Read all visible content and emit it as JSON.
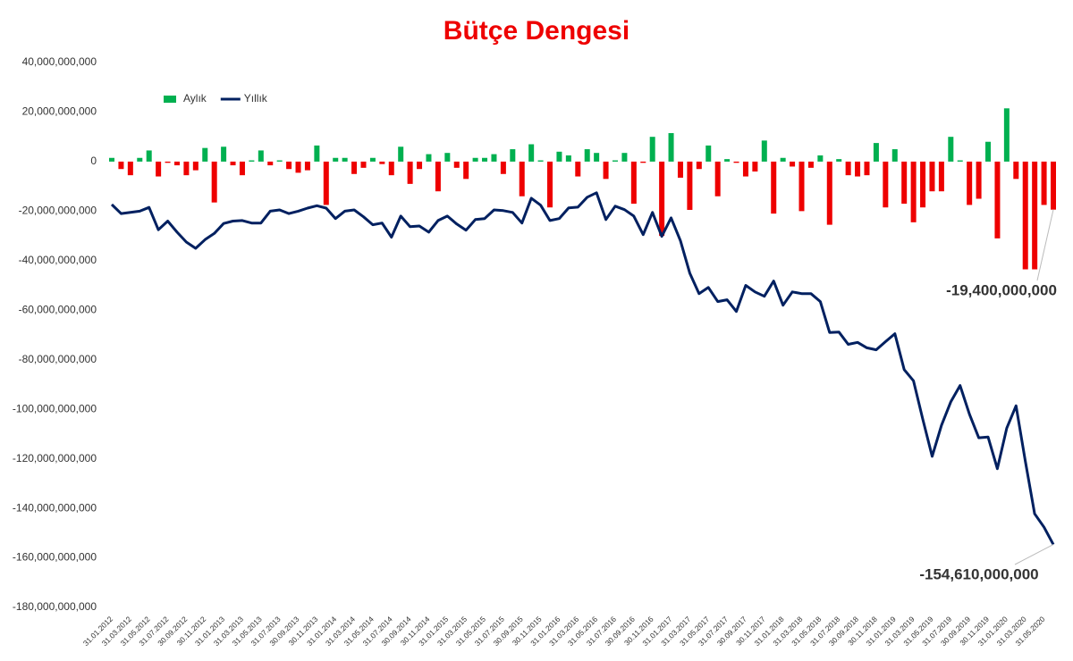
{
  "chart_data": {
    "type": "bar",
    "title": "Bütçe Dengesi",
    "categories": [
      "31.01.2012",
      null,
      "31.03.2012",
      null,
      "31.05.2012",
      null,
      "31.07.2012",
      null,
      "30.09.2012",
      null,
      "30.11.2012",
      null,
      "31.01.2013",
      null,
      "31.03.2013",
      null,
      "31.05.2013",
      null,
      "31.07.2013",
      null,
      "30.09.2013",
      null,
      "30.11.2013",
      null,
      "31.01.2014",
      null,
      "31.03.2014",
      null,
      "31.05.2014",
      null,
      "31.07.2014",
      null,
      "30.09.2014",
      null,
      "30.11.2014",
      null,
      "31.01.2015",
      null,
      "31.03.2015",
      null,
      "31.05.2015",
      null,
      "31.07.2015",
      null,
      "30.09.2015",
      null,
      "30.11.2015",
      null,
      "31.01.2016",
      null,
      "31.03.2016",
      null,
      "31.05.2016",
      null,
      "31.07.2016",
      null,
      "30.09.2016",
      null,
      "30.11.2016",
      null,
      "31.01.2017",
      null,
      "31.03.2017",
      null,
      "31.05.2017",
      null,
      "31.07.2017",
      null,
      "30.09.2017",
      null,
      "30.11.2017",
      null,
      "31.01.2018",
      null,
      "31.03.2018",
      null,
      "31.05.2018",
      null,
      "31.07.2018",
      null,
      "30.09.2018",
      null,
      "30.11.2018",
      null,
      "31.01.2019",
      null,
      "31.03.2019",
      null,
      "31.05.2019",
      null,
      "31.07.2019",
      null,
      "30.09.2019",
      null,
      "30.11.2019",
      null,
      "31.01.2020",
      null,
      "31.03.2020",
      null,
      "31.05.2020",
      null
    ],
    "series": [
      {
        "name": "Aylık",
        "type": "bar",
        "color": "#00b050",
        "negative_color": "#ee0000",
        "values": [
          1500000000,
          -3000000000,
          -5500000000,
          1500000000,
          4500000000,
          -6000000000,
          -500000000,
          -1500000000,
          -5500000000,
          -3500000000,
          5500000000,
          -16500000000,
          6000000000,
          -1500000000,
          -5500000000,
          500000000,
          4500000000,
          -1500000000,
          500000000,
          -3000000000,
          -4500000000,
          -3500000000,
          6500000000,
          -17500000000,
          1500000000,
          1500000000,
          -5000000000,
          -2500000000,
          1500000000,
          -1000000000,
          -5500000000,
          6000000000,
          -9000000000,
          -3000000000,
          3000000000,
          -12000000000,
          3500000000,
          -2500000000,
          -7000000000,
          1500000000,
          1500000000,
          3000000000,
          -5000000000,
          5000000000,
          -14000000000,
          7000000000,
          500000000,
          -18500000000,
          4000000000,
          2500000000,
          -6000000000,
          5000000000,
          3500000000,
          -7000000000,
          500000000,
          3500000000,
          -17000000000,
          -500000000,
          10000000000,
          -30000000000,
          11500000000,
          -6500000000,
          -19500000000,
          -3000000000,
          6500000000,
          -14000000000,
          1000000000,
          -500000000,
          -6000000000,
          -4000000000,
          8500000000,
          -21000000000,
          1500000000,
          -2000000000,
          -20000000000,
          -2500000000,
          2500000000,
          -25500000000,
          1000000000,
          -5500000000,
          -6000000000,
          -5500000000,
          7500000000,
          -18500000000,
          5000000000,
          -17000000000,
          -24500000000,
          -18500000000,
          -12000000000,
          -12000000000,
          10000000000,
          500000000,
          -17500000000,
          -15000000000,
          8000000000,
          -31000000000,
          21500000000,
          -7000000000,
          -43500000000,
          -43500000000,
          -17500000000,
          -19400000000
        ],
        "value_labels": [
          null,
          null,
          null,
          null,
          null,
          null,
          null,
          null,
          null,
          null,
          null,
          null,
          null,
          null,
          null,
          null,
          null,
          null,
          null,
          null,
          null,
          null,
          null,
          null,
          null,
          null,
          null,
          null,
          null,
          null,
          null,
          null,
          null,
          null,
          null,
          null,
          null,
          null,
          null,
          null,
          null,
          null,
          null,
          null,
          null,
          null,
          null,
          null,
          null,
          null,
          null,
          null,
          null,
          null,
          null,
          null,
          null,
          null,
          null,
          null,
          null,
          null,
          null,
          null,
          null,
          null,
          null,
          null,
          null,
          null,
          null,
          null,
          null,
          null,
          null,
          null,
          null,
          null,
          null,
          null,
          null,
          null,
          null,
          null,
          null,
          null,
          null,
          null,
          null,
          null,
          null,
          null,
          null,
          null,
          null,
          null,
          null,
          null,
          null,
          null,
          null,
          "-19,400,000,000"
        ]
      },
      {
        "name": "Yıllık",
        "type": "line",
        "color": "#002060",
        "values": [
          -17300000000,
          -21000000000,
          -20500000000,
          -20000000000,
          -18500000000,
          -27500000000,
          -24000000000,
          -28500000000,
          -32500000000,
          -35000000000,
          -31500000000,
          -29000000000,
          -25000000000,
          -24000000000,
          -23800000000,
          -24800000000,
          -24800000000,
          -20000000000,
          -19500000000,
          -21000000000,
          -20000000000,
          -18800000000,
          -17800000000,
          -18800000000,
          -23000000000,
          -20000000000,
          -19500000000,
          -22300000000,
          -25500000000,
          -24800000000,
          -30500000000,
          -22000000000,
          -26300000000,
          -26000000000,
          -28500000000,
          -23800000000,
          -22000000000,
          -25200000000,
          -27700000000,
          -23400000000,
          -23000000000,
          -19500000000,
          -19800000000,
          -20500000000,
          -24800000000,
          -14800000000,
          -17600000000,
          -23800000000,
          -23000000000,
          -18700000000,
          -18400000000,
          -14400000000,
          -12600000000,
          -23400000000,
          -18000000000,
          -19400000000,
          -22000000000,
          -29500000000,
          -20500000000,
          -30200000000,
          -22700000000,
          -32000000000,
          -45000000000,
          -53300000000,
          -50800000000,
          -56500000000,
          -55800000000,
          -60500000000,
          -50000000000,
          -52600000000,
          -54400000000,
          -48200000000,
          -58000000000,
          -52600000000,
          -53300000000,
          -53300000000,
          -56500000000,
          -69000000000,
          -68800000000,
          -73800000000,
          -73000000000,
          -75200000000,
          -76000000000,
          -72700000000,
          -69500000000,
          -84000000000,
          -88500000000,
          -104000000000,
          -119000000000,
          -106500000000,
          -97000000000,
          -90400000000,
          -102000000000,
          -111500000000,
          -111200000000,
          -124000000000,
          -107600000000,
          -98600000000,
          -121000000000,
          -142200000000,
          -147600000000,
          -154610000000
        ],
        "value_labels": [
          null,
          null,
          null,
          null,
          null,
          null,
          null,
          null,
          null,
          null,
          null,
          null,
          null,
          null,
          null,
          null,
          null,
          null,
          null,
          null,
          null,
          null,
          null,
          null,
          null,
          null,
          null,
          null,
          null,
          null,
          null,
          null,
          null,
          null,
          null,
          null,
          null,
          null,
          null,
          null,
          null,
          null,
          null,
          null,
          null,
          null,
          null,
          null,
          null,
          null,
          null,
          null,
          null,
          null,
          null,
          null,
          null,
          null,
          null,
          null,
          null,
          null,
          null,
          null,
          null,
          null,
          null,
          null,
          null,
          null,
          null,
          null,
          null,
          null,
          null,
          null,
          null,
          null,
          null,
          null,
          null,
          null,
          null,
          null,
          null,
          null,
          null,
          null,
          null,
          null,
          null,
          null,
          null,
          null,
          null,
          null,
          null,
          null,
          null,
          null,
          null,
          "-154,610,000,000"
        ]
      }
    ],
    "ylim": [
      -180000000000,
      40000000000
    ],
    "yticks": [
      {
        "value": 40000000000,
        "label": "40,000,000,000"
      },
      {
        "value": 20000000000,
        "label": "20,000,000,000"
      },
      {
        "value": 0,
        "label": "0"
      },
      {
        "value": -20000000000,
        "label": "-20,000,000,000"
      },
      {
        "value": -40000000000,
        "label": "-40,000,000,000"
      },
      {
        "value": -60000000000,
        "label": "-60,000,000,000"
      },
      {
        "value": -80000000000,
        "label": "-80,000,000,000"
      },
      {
        "value": -100000000000,
        "label": "-100,000,000,000"
      },
      {
        "value": -120000000000,
        "label": "-120,000,000,000"
      },
      {
        "value": -140000000000,
        "label": "-140,000,000,000"
      },
      {
        "value": -160000000000,
        "label": "-160,000,000,000"
      },
      {
        "value": -180000000000,
        "label": "-180,000,000,000"
      }
    ],
    "grid": false,
    "legend": "upper left",
    "title_color": "#ee0000"
  }
}
